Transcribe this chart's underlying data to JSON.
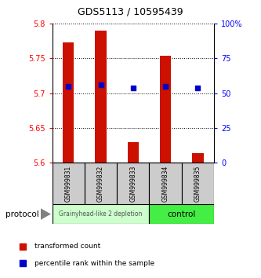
{
  "title": "GDS5113 / 10595439",
  "samples": [
    "GSM999831",
    "GSM999832",
    "GSM999833",
    "GSM999834",
    "GSM999835"
  ],
  "bar_bottoms": [
    5.6,
    5.6,
    5.6,
    5.6,
    5.6
  ],
  "bar_tops": [
    5.773,
    5.79,
    5.629,
    5.754,
    5.614
  ],
  "blue_squares_y": [
    5.71,
    5.712,
    5.707,
    5.71,
    5.707
  ],
  "ylim": [
    5.6,
    5.8
  ],
  "yticks_left": [
    5.6,
    5.65,
    5.7,
    5.75,
    5.8
  ],
  "yticks_right": [
    0,
    25,
    50,
    75,
    100
  ],
  "bar_color": "#cc1100",
  "square_color": "#0000cc",
  "group1_samples": [
    0,
    1,
    2
  ],
  "group2_samples": [
    3,
    4
  ],
  "group1_label": "Grainyhead-like 2 depletion",
  "group2_label": "control",
  "group1_color": "#ccffcc",
  "group2_color": "#44ee44",
  "protocol_label": "protocol",
  "legend_red_label": "transformed count",
  "legend_blue_label": "percentile rank within the sample",
  "bar_width": 0.35,
  "fig_width": 3.33,
  "fig_height": 3.54,
  "dpi": 100
}
